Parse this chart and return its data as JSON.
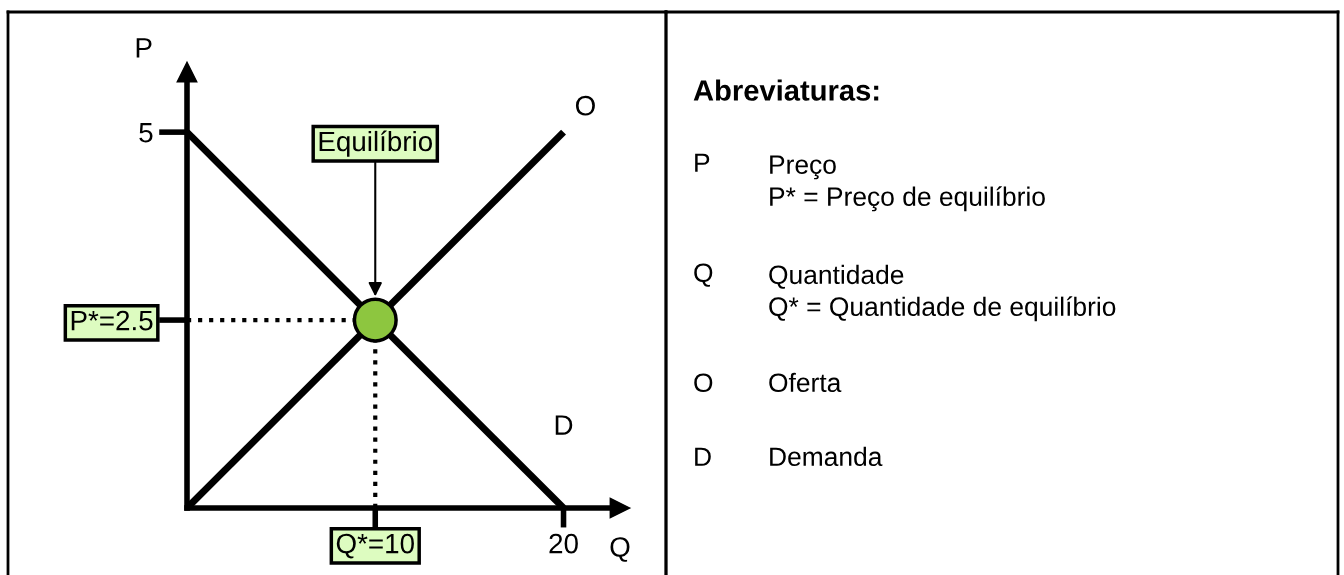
{
  "chart_data": [
    {
      "type": "line",
      "xlabel": "Q",
      "ylabel": "P",
      "x": [
        0,
        20
      ],
      "xlim": [
        0,
        23
      ],
      "ylim": [
        0,
        5.8
      ],
      "xticks": [
        {
          "value": 10,
          "label": "Q*=10"
        },
        20
      ],
      "yticks": [
        {
          "value": 2.5,
          "label": "P*=2.5"
        },
        5
      ],
      "series": [
        {
          "name": "D",
          "color": "#000000",
          "values": [
            5,
            0
          ]
        },
        {
          "name": "O",
          "color": "#000000",
          "values": [
            0,
            5
          ]
        },
        {
          "type": "scatter",
          "x": [
            10
          ],
          "color": "#8dc63f",
          "values": [
            2.5
          ],
          "marker": "circle"
        }
      ],
      "ref_lines": [
        {
          "axis": "y",
          "value": 2.5,
          "line_style": "dotted",
          "color": "#000000"
        },
        {
          "axis": "x",
          "value": 10,
          "line_style": "dotted",
          "color": "#000000"
        }
      ],
      "annotations": [
        "Equilíbrio"
      ],
      "grid": false,
      "legend": false,
      "marker": "none",
      "line_style": "solid"
    },
    {
      "type": "other",
      "title": "Abreviaturas:",
      "annotations": [
        "P",
        "Preço\nP* = Preço de equilíbrio",
        "Q",
        "Quantidade\nQ* = Quantidade de equilíbrio",
        "O",
        "Oferta",
        "D",
        "Demanda"
      ]
    }
  ]
}
